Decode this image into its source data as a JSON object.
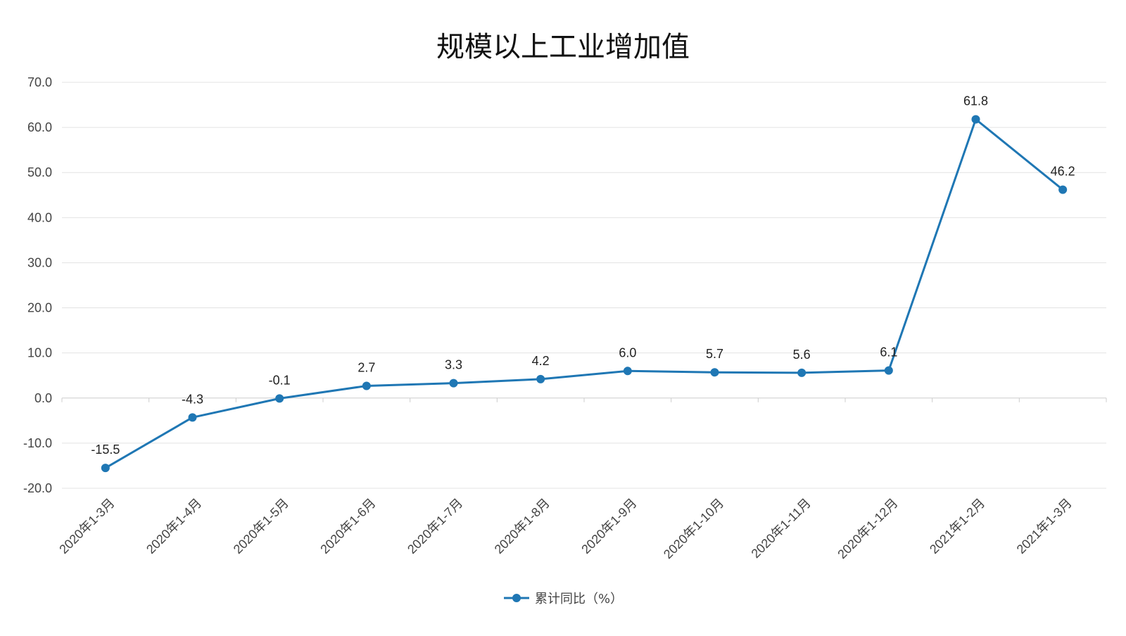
{
  "chart_data": {
    "type": "line",
    "title": "规模以上工业增加值",
    "xlabel": "",
    "ylabel": "",
    "categories": [
      "2020年1-3月",
      "2020年1-4月",
      "2020年1-5月",
      "2020年1-6月",
      "2020年1-7月",
      "2020年1-8月",
      "2020年1-9月",
      "2020年1-10月",
      "2020年1-11月",
      "2020年1-12月",
      "2021年1-2月",
      "2021年1-3月"
    ],
    "series": [
      {
        "name": "累计同比（%）",
        "values": [
          -15.5,
          -4.3,
          -0.1,
          2.7,
          3.3,
          4.2,
          6.0,
          5.7,
          5.6,
          6.1,
          61.8,
          46.2
        ],
        "value_labels": [
          "-15.5",
          "-4.3",
          "-0.1",
          "2.7",
          "3.3",
          "4.2",
          "6.0",
          "5.7",
          "5.6",
          "6.1",
          "61.8",
          "46.2"
        ],
        "color": "#1f77b4"
      }
    ],
    "ylim": [
      -20,
      70
    ],
    "yticks": [
      -20,
      -10,
      0,
      10,
      20,
      30,
      40,
      50,
      60,
      70
    ],
    "ytick_labels": [
      "-20.0",
      "-10.0",
      "0.0",
      "10.0",
      "20.0",
      "30.0",
      "40.0",
      "50.0",
      "60.0",
      "70.0"
    ],
    "grid": true,
    "legend_position": "bottom-center"
  }
}
